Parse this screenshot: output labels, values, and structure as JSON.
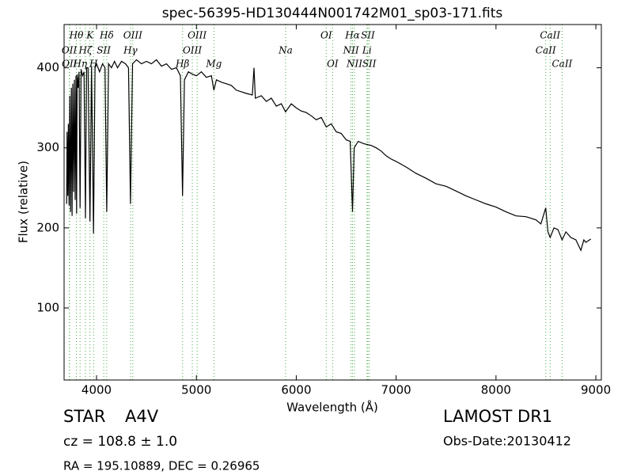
{
  "chart_data": {
    "type": "line",
    "title": "spec-56395-HD130444N001742M01_sp03-171.fits",
    "x_label": "Wavelength (Å)",
    "y_label": "Flux (relative)",
    "xlim": [
      3675,
      9055
    ],
    "ylim": [
      10,
      454
    ],
    "xticks": [
      4000,
      5000,
      6000,
      7000,
      8000,
      9000
    ],
    "yticks": [
      100,
      200,
      300,
      400
    ],
    "color": "#000000",
    "line_color": "#44aa44",
    "x": [
      3700,
      3705,
      3712,
      3718,
      3725,
      3732,
      3740,
      3748,
      3755,
      3762,
      3770,
      3778,
      3786,
      3794,
      3800,
      3806,
      3815,
      3825,
      3835,
      3845,
      3860,
      3875,
      3889,
      3900,
      3915,
      3934,
      3950,
      3970,
      3985,
      4000,
      4030,
      4060,
      4085,
      4102,
      4120,
      4150,
      4180,
      4210,
      4250,
      4290,
      4320,
      4340,
      4360,
      4400,
      4450,
      4500,
      4550,
      4600,
      4650,
      4700,
      4750,
      4800,
      4840,
      4861,
      4880,
      4920,
      4960,
      5000,
      5050,
      5100,
      5150,
      5175,
      5200,
      5250,
      5300,
      5350,
      5400,
      5450,
      5500,
      5560,
      5577,
      5590,
      5650,
      5700,
      5750,
      5800,
      5850,
      5893,
      5950,
      6000,
      6050,
      6100,
      6150,
      6200,
      6250,
      6300,
      6350,
      6400,
      6450,
      6500,
      6540,
      6563,
      6580,
      6620,
      6680,
      6750,
      6800,
      6850,
      6900,
      6950,
      7000,
      7100,
      7200,
      7300,
      7400,
      7500,
      7600,
      7700,
      7800,
      7900,
      8000,
      8100,
      8200,
      8300,
      8400,
      8450,
      8498,
      8520,
      8542,
      8580,
      8620,
      8662,
      8700,
      8750,
      8800,
      8850,
      8880,
      8900,
      8950
    ],
    "values": [
      230,
      320,
      240,
      330,
      228,
      365,
      220,
      375,
      215,
      380,
      245,
      385,
      235,
      390,
      218,
      392,
      375,
      395,
      225,
      398,
      390,
      395,
      212,
      400,
      400,
      208,
      402,
      193,
      400,
      405,
      395,
      405,
      400,
      220,
      405,
      400,
      408,
      400,
      408,
      405,
      400,
      230,
      405,
      410,
      405,
      408,
      405,
      410,
      402,
      405,
      398,
      400,
      390,
      240,
      385,
      395,
      392,
      390,
      395,
      388,
      390,
      372,
      385,
      382,
      380,
      378,
      372,
      370,
      368,
      366,
      400,
      362,
      365,
      358,
      362,
      352,
      355,
      345,
      355,
      350,
      346,
      344,
      340,
      335,
      338,
      326,
      330,
      320,
      318,
      310,
      308,
      220,
      300,
      308,
      305,
      303,
      300,
      296,
      290,
      286,
      283,
      276,
      268,
      262,
      255,
      252,
      246,
      240,
      235,
      230,
      226,
      220,
      215,
      214,
      210,
      205,
      225,
      195,
      188,
      200,
      198,
      185,
      195,
      188,
      185,
      172,
      185,
      182,
      186
    ],
    "lines": [
      {
        "label": "Hθ",
        "x": 3798,
        "row": 0
      },
      {
        "label": "K",
        "x": 3934,
        "row": 0
      },
      {
        "label": "Hδ",
        "x": 4102,
        "row": 0
      },
      {
        "label": "OIII",
        "x": 4363,
        "row": 0
      },
      {
        "label": "OIII",
        "x": 5007,
        "row": 0
      },
      {
        "label": "OI",
        "x": 6300,
        "row": 0
      },
      {
        "label": "Hα",
        "x": 6563,
        "row": 0
      },
      {
        "label": "SII",
        "x": 6717,
        "row": 0
      },
      {
        "label": "CaII",
        "x": 8542,
        "row": 0
      },
      {
        "label": "OII",
        "x": 3727,
        "row": 1
      },
      {
        "label": "Hζ",
        "x": 3889,
        "row": 1
      },
      {
        "label": "SII",
        "x": 4072,
        "row": 1
      },
      {
        "label": "Hγ",
        "x": 4340,
        "row": 1
      },
      {
        "label": "OIII",
        "x": 4959,
        "row": 1
      },
      {
        "label": "Na",
        "x": 5893,
        "row": 1
      },
      {
        "label": "NII",
        "x": 6548,
        "row": 1
      },
      {
        "label": "Li",
        "x": 6708,
        "row": 1
      },
      {
        "label": "CaII",
        "x": 8498,
        "row": 1
      },
      {
        "label": "OII",
        "x": 3729,
        "row": 2
      },
      {
        "label": "Hη",
        "x": 3835,
        "row": 2
      },
      {
        "label": "H",
        "x": 3970,
        "row": 2
      },
      {
        "label": "Hβ",
        "x": 4861,
        "row": 2
      },
      {
        "label": "Mg",
        "x": 5175,
        "row": 2
      },
      {
        "label": "OI",
        "x": 6364,
        "row": 2
      },
      {
        "label": "NII",
        "x": 6583,
        "row": 2
      },
      {
        "label": "SII",
        "x": 6731,
        "row": 2
      },
      {
        "label": "CaII",
        "x": 8662,
        "row": 2
      }
    ],
    "object_class": "STAR",
    "subclass": "A4V",
    "redshift": "cz = 108.8 ± 1.0",
    "coordinates": "RA = 195.10889, DEC = 0.26965",
    "survey": "LAMOST DR1",
    "obs_date": "Obs-Date:20130412"
  }
}
